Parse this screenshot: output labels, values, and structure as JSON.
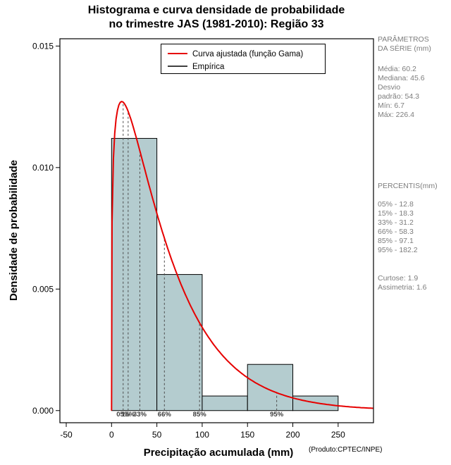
{
  "title": {
    "line1": "Histograma e curva densidade de probabilidade",
    "line2": "no trimestre JAS (1981-2010): Região 33"
  },
  "sidebar": {
    "params_header": [
      "PARÂMETROS",
      "DA SÉRIE (mm)"
    ],
    "series_stats": [
      "Média:  60.2",
      "Mediana:  45.6",
      "Desvio",
      "padrão:  54.3",
      "Mín:  6.7",
      "Máx:  226.4"
    ],
    "percentis_header": "PERCENTIS(mm)",
    "percentile_stats": [
      "05% -  12.8",
      "15% -  18.3",
      "33% -  31.2",
      "66% -  58.3",
      "85% -  97.1",
      "95% -  182.2"
    ],
    "shape_stats": [
      "Curtose:  1.9",
      "Assimetria:  1.6"
    ]
  },
  "chart_data": {
    "type": "bar",
    "subtype": "histogram-with-density-curve",
    "title": "Histograma e curva densidade de probabilidade no trimestre JAS (1981-2010): Região 33",
    "xlabel": "Precipitação acumulada (mm)",
    "source_note": "(Produto:CPTEC/INPE)",
    "ylabel": "Densidade de probabilidade",
    "xlim": [
      -57,
      289
    ],
    "ylim": [
      -0.0005,
      0.0153
    ],
    "xticks": [
      -50,
      0,
      50,
      100,
      150,
      200,
      250
    ],
    "yticks": [
      0,
      0.005,
      0.01,
      0.015
    ],
    "grid": false,
    "legend_position": "top-center-inside",
    "bars": {
      "bin_edges": [
        0,
        50,
        100,
        150,
        200,
        250
      ],
      "densities": [
        0.0112,
        0.0056,
        0.0006,
        0.0019,
        0.0006
      ],
      "fill": "#b4cccf",
      "stroke": "#000000"
    },
    "curve": {
      "label": "Curva ajustada (função Gama)",
      "distribution": "gamma",
      "shape": 1.229,
      "scale": 48.98,
      "peak": {
        "x": 11.2,
        "y": 0.0127
      },
      "color": "#e60000",
      "width": 2
    },
    "legend": [
      {
        "label": "Curva ajustada (função Gama)",
        "color": "#e60000",
        "line_width": 2
      },
      {
        "label": "Empírica",
        "color": "#000000",
        "line_width": 1.5
      }
    ],
    "percentiles": [
      {
        "label": "05%",
        "x": 12.8
      },
      {
        "label": "15%",
        "x": 18.3
      },
      {
        "label": "33%",
        "x": 31.2
      },
      {
        "label": "66%",
        "x": 58.3
      },
      {
        "label": "85%",
        "x": 97.1
      },
      {
        "label": "95%",
        "x": 182.2
      }
    ],
    "stats": {
      "media": 60.2,
      "mediana": 45.6,
      "desvio_padrao": 54.3,
      "min": 6.7,
      "max": 226.4,
      "curtose": 1.9,
      "assimetria": 1.6
    }
  }
}
